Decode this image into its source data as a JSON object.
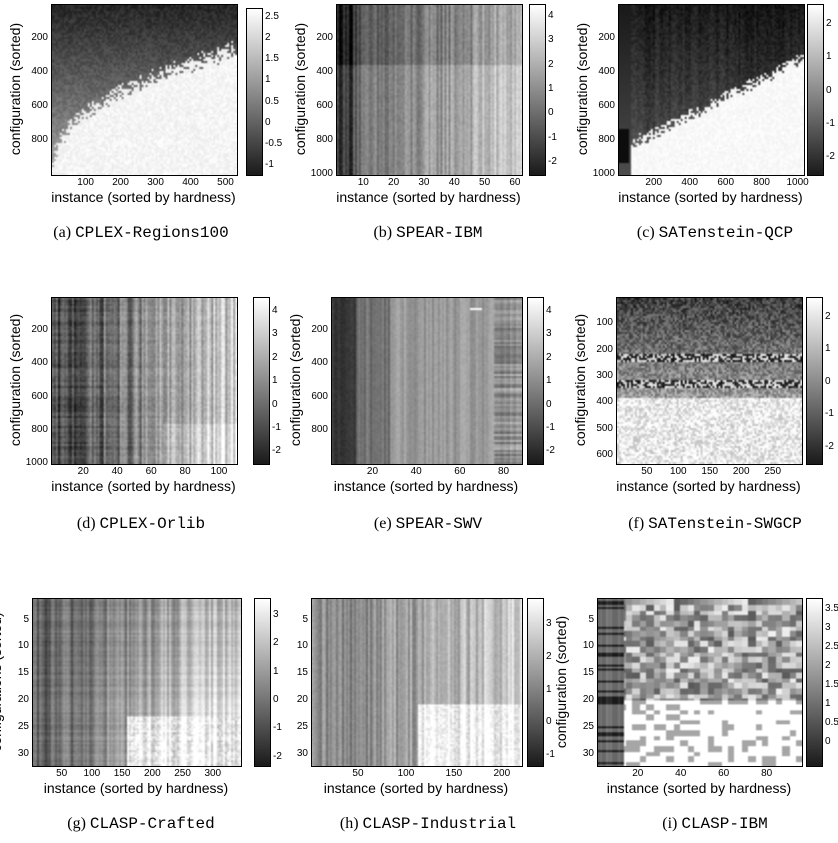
{
  "chart_data": [
    {
      "type": "heatmap",
      "caption_label": "(a)",
      "caption_name": "CPLEX-Regions100",
      "xlabel": "instance (sorted by hardness)",
      "ylabel": "configuration (sorted)",
      "xticks": [
        100,
        200,
        300,
        400,
        500
      ],
      "xlim": [
        1,
        530
      ],
      "yticks": [
        200,
        400,
        600,
        800
      ],
      "ylim": [
        1,
        1000
      ],
      "cbar_ticks": [
        "2.5",
        "2",
        "1.5",
        "1",
        "0.5",
        "0",
        "-0.5",
        "-1"
      ],
      "cbar_range": [
        -1.2,
        2.7
      ],
      "pattern": "wedge_a"
    },
    {
      "type": "heatmap",
      "caption_label": "(b)",
      "caption_name": "SPEAR-IBM",
      "xlabel": "instance (sorted by hardness)",
      "ylabel": "configuration (sorted)",
      "xticks": [
        10,
        20,
        30,
        40,
        50,
        60
      ],
      "xlim": [
        1,
        62
      ],
      "yticks": [
        200,
        400,
        600,
        800,
        1000
      ],
      "ylim": [
        1,
        1000
      ],
      "cbar_ticks": [
        "4",
        "3",
        "2",
        "1",
        "0",
        "-1",
        "-2"
      ],
      "cbar_range": [
        -2.5,
        4.5
      ],
      "pattern": "stripes_b"
    },
    {
      "type": "heatmap",
      "caption_label": "(c)",
      "caption_name": "SATenstein-QCP",
      "xlabel": "instance (sorted by hardness)",
      "ylabel": "configuration (sorted)",
      "xticks": [
        200,
        400,
        600,
        800,
        1000
      ],
      "xlim": [
        1,
        1030
      ],
      "yticks": [
        200,
        400,
        600,
        800,
        1000
      ],
      "ylim": [
        1,
        1000
      ],
      "cbar_ticks": [
        "2",
        "1",
        "0",
        "-1",
        "-2"
      ],
      "cbar_range": [
        -2.5,
        2.6
      ],
      "pattern": "wedge_c"
    },
    {
      "type": "heatmap",
      "caption_label": "(d)",
      "caption_name": "CPLEX-Orlib",
      "xlabel": "instance (sorted by hardness)",
      "ylabel": "configuration (sorted)",
      "xticks": [
        20,
        40,
        60,
        80,
        100
      ],
      "xlim": [
        1,
        110
      ],
      "yticks": [
        200,
        400,
        600,
        800,
        1000
      ],
      "ylim": [
        1,
        1000
      ],
      "cbar_ticks": [
        "4",
        "3",
        "2",
        "1",
        "0",
        "-1",
        "-2"
      ],
      "cbar_range": [
        -2.5,
        4.6
      ],
      "pattern": "stripes_d"
    },
    {
      "type": "heatmap",
      "caption_label": "(e)",
      "caption_name": "SPEAR-SWV",
      "xlabel": "instance (sorted by hardness)",
      "ylabel": "configuration (sorted)",
      "xticks": [
        20,
        40,
        60,
        80
      ],
      "xlim": [
        1,
        88
      ],
      "yticks": [
        200,
        400,
        600,
        800
      ],
      "ylim": [
        1,
        1000
      ],
      "cbar_ticks": [
        "4",
        "3",
        "2",
        "1",
        "0",
        "-1",
        "-2"
      ],
      "cbar_range": [
        -2.5,
        4.6
      ],
      "pattern": "stripes_e"
    },
    {
      "type": "heatmap",
      "caption_label": "(f)",
      "caption_name": "SATenstein-SWGCP",
      "xlabel": "instance (sorted by hardness)",
      "ylabel": "configuration (sorted)",
      "xticks": [
        50,
        100,
        150,
        200,
        250
      ],
      "xlim": [
        1,
        295
      ],
      "yticks": [
        100,
        200,
        300,
        400,
        500,
        600
      ],
      "ylim": [
        1,
        630
      ],
      "cbar_ticks": [
        "2",
        "1",
        "0",
        "-1",
        "-2"
      ],
      "cbar_range": [
        -2.5,
        2.6
      ],
      "pattern": "bands_f"
    },
    {
      "type": "heatmap",
      "caption_label": "(g)",
      "caption_name": "CLASP-Crafted",
      "xlabel": "instance (sorted by hardness)",
      "ylabel": "configurations (sorted)",
      "xticks": [
        50,
        100,
        150,
        200,
        250,
        300
      ],
      "xlim": [
        1,
        345
      ],
      "yticks": [
        5,
        10,
        15,
        20,
        25,
        30
      ],
      "ylim": [
        1,
        32
      ],
      "cbar_ticks": [
        "3",
        "2",
        "1",
        "0",
        "-1",
        "-2"
      ],
      "cbar_range": [
        -2.3,
        3.6
      ],
      "pattern": "stripes_g"
    },
    {
      "type": "heatmap",
      "caption_label": "(h)",
      "caption_name": "CLASP-Industrial",
      "xlabel": "instance (sorted by hardness)",
      "ylabel": "",
      "xticks": [
        50,
        100,
        150,
        200
      ],
      "xlim": [
        1,
        220
      ],
      "yticks": [
        5,
        10,
        15,
        20,
        25,
        30
      ],
      "ylim": [
        1,
        32
      ],
      "cbar_ticks": [
        "3",
        "2",
        "1",
        "0",
        "-1"
      ],
      "cbar_range": [
        -1.3,
        3.8
      ],
      "pattern": "stripes_h"
    },
    {
      "type": "heatmap",
      "caption_label": "(i)",
      "caption_name": "CLASP-IBM",
      "xlabel": "instance (sorted by hardness)",
      "ylabel": "configuration (sorted)",
      "xticks": [
        20,
        40,
        60,
        80
      ],
      "xlim": [
        1,
        96
      ],
      "yticks": [
        5,
        10,
        15,
        20,
        25,
        30
      ],
      "ylim": [
        1,
        32
      ],
      "cbar_ticks": [
        "3.5",
        "3",
        "2.5",
        "2",
        "1.5",
        "1",
        "0.5",
        "0"
      ],
      "cbar_range": [
        -0.6,
        3.8
      ],
      "pattern": "blocks_i"
    }
  ]
}
